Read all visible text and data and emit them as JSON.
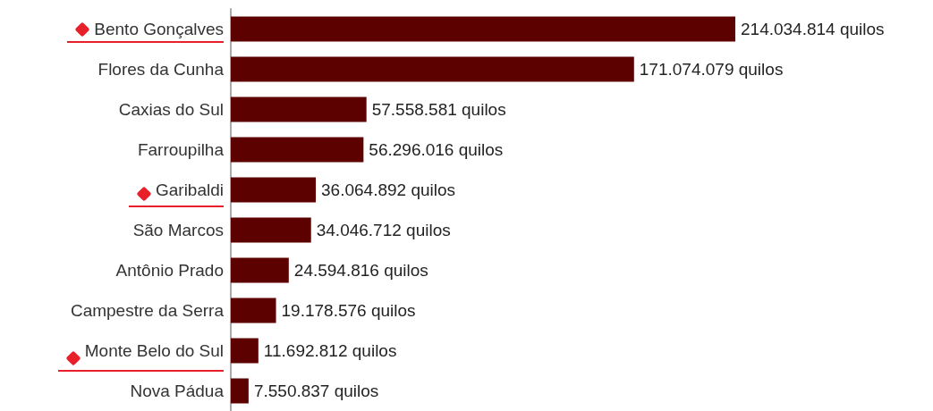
{
  "chart_data": {
    "type": "bar",
    "orientation": "horizontal",
    "categories": [
      "Bento Gonçalves",
      "Flores da Cunha",
      "Caxias do Sul",
      "Farroupilha",
      "Garibaldi",
      "São Marcos",
      "Antônio Prado",
      "Campestre da Serra",
      "Monte Belo do Sul",
      "Nova Pádua"
    ],
    "values": [
      214034814,
      171074079,
      57558581,
      56296016,
      36064892,
      34046712,
      24594816,
      19178576,
      11692812,
      7550837
    ],
    "value_labels": [
      "214.034.814 quilos",
      "171.074.079 quilos",
      "57.558.581 quilos",
      "56.296.016 quilos",
      "36.064.892 quilos",
      "34.046.712 quilos",
      "24.594.816 quilos",
      "19.178.576 quilos",
      "11.692.812 quilos",
      "7.550.837 quilos"
    ],
    "color": "#5c0000"
  }
}
